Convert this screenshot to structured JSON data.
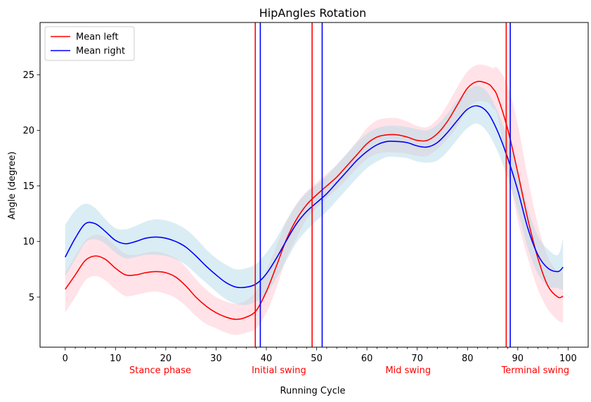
{
  "chart_data": {
    "type": "line",
    "title": "HipAngles Rotation",
    "xlabel": "Running Cycle",
    "ylabel": "Angle (degree)",
    "xlim": [
      -5,
      104
    ],
    "ylim": [
      0.5,
      29.7
    ],
    "xticks": [
      0,
      10,
      20,
      30,
      40,
      50,
      60,
      70,
      80,
      90,
      100
    ],
    "yticks": [
      5,
      10,
      15,
      20,
      25
    ],
    "minor_xtick_step": 2,
    "grid": false,
    "legend": {
      "placement": "top-left"
    },
    "series": [
      {
        "name": "Mean left",
        "color": "#ff0000",
        "band_color": "#ffc0cb",
        "x": [
          0,
          2,
          4,
          6,
          8,
          10,
          12,
          14,
          16,
          18,
          20,
          22,
          24,
          26,
          28,
          30,
          32,
          34,
          36,
          38,
          40,
          42,
          44,
          46,
          48,
          50,
          52,
          54,
          56,
          58,
          60,
          62,
          64,
          66,
          68,
          70,
          72,
          74,
          76,
          78,
          80,
          82,
          84,
          85,
          86,
          88,
          90,
          92,
          94,
          96,
          98,
          99
        ],
        "mean": [
          5.7,
          7.0,
          8.3,
          8.7,
          8.4,
          7.6,
          7.0,
          7.0,
          7.2,
          7.3,
          7.2,
          6.8,
          6.0,
          5.0,
          4.2,
          3.6,
          3.2,
          3.0,
          3.2,
          3.8,
          5.5,
          7.8,
          10.2,
          12.0,
          13.3,
          14.2,
          15.0,
          15.8,
          16.8,
          17.8,
          18.8,
          19.4,
          19.6,
          19.6,
          19.4,
          19.1,
          19.1,
          19.7,
          20.8,
          22.3,
          23.8,
          24.4,
          24.2,
          23.8,
          23.0,
          20.1,
          16.2,
          12.0,
          8.5,
          6.0,
          5.0,
          5.1
        ],
        "upper": [
          7.2,
          8.7,
          10.1,
          10.6,
          10.4,
          9.6,
          8.9,
          8.8,
          9.0,
          9.1,
          8.9,
          8.5,
          7.7,
          6.6,
          5.7,
          5.0,
          4.6,
          4.4,
          4.7,
          5.6,
          7.4,
          9.6,
          11.8,
          13.4,
          14.5,
          15.3,
          16.1,
          16.9,
          17.9,
          19.0,
          20.2,
          20.9,
          21.1,
          21.1,
          20.8,
          20.4,
          20.3,
          21.0,
          22.3,
          23.9,
          25.3,
          25.9,
          25.8,
          25.6,
          25.6,
          24.0,
          20.5,
          15.7,
          11.5,
          8.6,
          7.3,
          7.3
        ],
        "lower": [
          3.6,
          5.0,
          6.5,
          6.9,
          6.5,
          5.7,
          5.1,
          5.2,
          5.4,
          5.5,
          5.3,
          4.9,
          4.2,
          3.3,
          2.6,
          2.2,
          1.8,
          1.6,
          1.8,
          2.2,
          3.6,
          5.8,
          8.5,
          10.3,
          12.0,
          13.0,
          13.9,
          14.7,
          15.6,
          16.6,
          17.4,
          17.9,
          18.0,
          18.0,
          17.9,
          17.7,
          17.7,
          18.3,
          19.2,
          20.4,
          22.0,
          22.6,
          22.5,
          22.0,
          21.2,
          16.5,
          11.9,
          8.5,
          5.7,
          3.9,
          2.9,
          2.7
        ]
      },
      {
        "name": "Mean right",
        "color": "#0000ff",
        "band_color": "#add8e6",
        "x": [
          0,
          2,
          4,
          6,
          8,
          10,
          12,
          14,
          16,
          18,
          20,
          22,
          24,
          26,
          28,
          30,
          32,
          34,
          36,
          38,
          40,
          42,
          44,
          46,
          48,
          50,
          52,
          54,
          56,
          58,
          60,
          62,
          64,
          66,
          68,
          70,
          72,
          74,
          76,
          78,
          80,
          82,
          84,
          86,
          88,
          90,
          92,
          94,
          96,
          98,
          99
        ],
        "mean": [
          8.6,
          10.3,
          11.6,
          11.6,
          10.9,
          10.1,
          9.8,
          10.0,
          10.3,
          10.4,
          10.3,
          10.0,
          9.5,
          8.7,
          7.8,
          7.0,
          6.3,
          5.9,
          5.9,
          6.2,
          7.1,
          8.5,
          10.1,
          11.6,
          12.7,
          13.5,
          14.3,
          15.3,
          16.3,
          17.3,
          18.1,
          18.7,
          19.0,
          19.0,
          18.9,
          18.6,
          18.5,
          18.9,
          19.8,
          20.9,
          21.9,
          22.2,
          21.6,
          19.9,
          17.5,
          14.6,
          11.2,
          8.8,
          7.6,
          7.3,
          7.7
        ],
        "upper": [
          11.5,
          12.8,
          13.4,
          13.0,
          12.0,
          11.2,
          11.1,
          11.4,
          11.8,
          12.0,
          11.9,
          11.6,
          11.1,
          10.3,
          9.3,
          8.5,
          7.9,
          7.5,
          7.6,
          8.0,
          9.0,
          10.3,
          11.9,
          13.3,
          14.4,
          15.1,
          15.9,
          16.9,
          17.9,
          18.9,
          19.7,
          20.2,
          20.4,
          20.4,
          20.3,
          20.1,
          20.0,
          20.5,
          21.5,
          22.7,
          23.6,
          24.0,
          23.4,
          21.7,
          19.3,
          16.4,
          13.0,
          10.5,
          9.3,
          8.8,
          10.3
        ],
        "lower": [
          6.9,
          8.4,
          9.9,
          10.2,
          9.8,
          9.0,
          8.5,
          8.6,
          8.8,
          8.8,
          8.7,
          8.4,
          7.9,
          7.1,
          6.3,
          5.5,
          4.8,
          4.4,
          4.3,
          4.6,
          5.3,
          6.7,
          8.3,
          9.9,
          11.0,
          11.9,
          12.7,
          13.7,
          14.7,
          15.7,
          16.6,
          17.2,
          17.6,
          17.6,
          17.5,
          17.2,
          17.1,
          17.3,
          18.1,
          19.2,
          20.2,
          20.6,
          19.8,
          18.1,
          15.7,
          12.8,
          9.4,
          7.1,
          6.0,
          5.8,
          5.6
        ]
      }
    ],
    "vertical_lines": [
      {
        "x": 37.8,
        "color": "#ff0000"
      },
      {
        "x": 38.8,
        "color": "#0000ff"
      },
      {
        "x": 49.1,
        "color": "#ff0000"
      },
      {
        "x": 51.1,
        "color": "#0000ff"
      },
      {
        "x": 87.7,
        "color": "#ff0000"
      },
      {
        "x": 88.5,
        "color": "#0000ff"
      }
    ],
    "phase_labels": [
      {
        "text": "Stance phase",
        "x": 18.9
      },
      {
        "text": "Initial swing",
        "x": 42.5
      },
      {
        "text": "Mid swing",
        "x": 68.2
      },
      {
        "text": "Terminal swing",
        "x": 93.5
      }
    ],
    "phase_label_color": "#ff0000"
  }
}
